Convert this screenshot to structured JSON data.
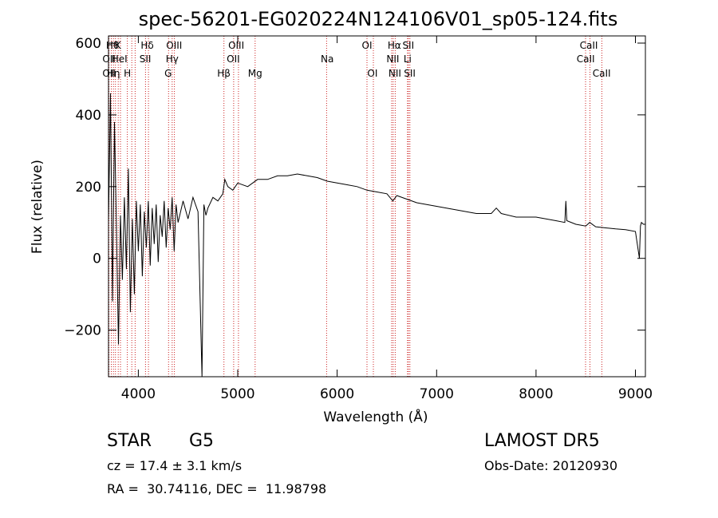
{
  "chart_data": {
    "type": "line",
    "title": "spec-56201-EG020224N124106V01_sp05-124.fits",
    "xlabel": "Wavelength (Å)",
    "ylabel": "Flux (relative)",
    "xlim": [
      3700,
      9100
    ],
    "ylim": [
      -330,
      620
    ],
    "x_ticks": [
      4000,
      5000,
      6000,
      7000,
      8000,
      9000
    ],
    "y_ticks": [
      -200,
      0,
      200,
      400,
      600
    ],
    "grid": false,
    "series": [
      {
        "x": [
          3700,
          3720,
          3740,
          3760,
          3780,
          3800,
          3820,
          3840,
          3860,
          3880,
          3900,
          3920,
          3940,
          3960,
          3980,
          4000,
          4020,
          4040,
          4060,
          4080,
          4100,
          4120,
          4140,
          4160,
          4180,
          4200,
          4220,
          4240,
          4260,
          4280,
          4300,
          4320,
          4340,
          4360,
          4380,
          4400,
          4450,
          4500,
          4550,
          4600,
          4640,
          4660,
          4680,
          4700,
          4750,
          4800,
          4850,
          4870,
          4900,
          4950,
          5000,
          5100,
          5200,
          5300,
          5400,
          5500,
          5600,
          5700,
          5800,
          5900,
          6000,
          6100,
          6200,
          6300,
          6400,
          6500,
          6560,
          6600,
          6700,
          6800,
          7000,
          7200,
          7400,
          7550,
          7600,
          7650,
          7800,
          8000,
          8200,
          8290,
          8300,
          8310,
          8400,
          8500,
          8540,
          8600,
          8700,
          8800,
          8900,
          9000,
          9040,
          9050,
          9060,
          9080,
          9100
        ],
        "values": [
          100,
          460,
          -120,
          380,
          80,
          -240,
          120,
          -60,
          170,
          -30,
          250,
          -150,
          110,
          -100,
          160,
          20,
          150,
          -50,
          130,
          30,
          160,
          -20,
          140,
          40,
          150,
          -10,
          120,
          60,
          160,
          30,
          140,
          80,
          170,
          20,
          150,
          100,
          160,
          110,
          170,
          130,
          -330,
          150,
          120,
          140,
          170,
          160,
          180,
          220,
          200,
          190,
          210,
          200,
          220,
          220,
          230,
          230,
          235,
          230,
          225,
          215,
          210,
          205,
          200,
          190,
          185,
          180,
          160,
          175,
          165,
          155,
          145,
          135,
          125,
          125,
          140,
          125,
          115,
          115,
          105,
          100,
          160,
          105,
          95,
          90,
          100,
          88,
          85,
          82,
          80,
          75,
          0,
          90,
          100,
          95,
          95
        ]
      }
    ],
    "lines": [
      {
        "x": 3705,
        "name": "OII"
      },
      {
        "x": 3728,
        "name": "OII"
      },
      {
        "x": 3750,
        "name": "Hθ"
      },
      {
        "x": 3770,
        "name": "Hη"
      },
      {
        "x": 3798,
        "name": "Hζ"
      },
      {
        "x": 3820,
        "name": "HeI"
      },
      {
        "x": 3889,
        "name": "HeI"
      },
      {
        "x": 3934,
        "name": "K"
      },
      {
        "x": 3968,
        "name": "H"
      },
      {
        "x": 4072,
        "name": "SII"
      },
      {
        "x": 4102,
        "name": "Hδ"
      },
      {
        "x": 4304,
        "name": "G"
      },
      {
        "x": 4340,
        "name": "Hγ"
      },
      {
        "x": 4363,
        "name": "OIII"
      },
      {
        "x": 4861,
        "name": "Hβ"
      },
      {
        "x": 4959,
        "name": "OIII"
      },
      {
        "x": 5007,
        "name": "OIII"
      },
      {
        "x": 5175,
        "name": "Mg"
      },
      {
        "x": 5894,
        "name": "Na"
      },
      {
        "x": 6300,
        "name": "OI"
      },
      {
        "x": 6364,
        "name": "OI"
      },
      {
        "x": 6548,
        "name": "NII"
      },
      {
        "x": 6563,
        "name": "Hα"
      },
      {
        "x": 6584,
        "name": "NII"
      },
      {
        "x": 6707,
        "name": "Li"
      },
      {
        "x": 6717,
        "name": "SII"
      },
      {
        "x": 6731,
        "name": "SII"
      },
      {
        "x": 8498,
        "name": "CaII"
      },
      {
        "x": 8542,
        "name": "CaII"
      },
      {
        "x": 8662,
        "name": "CaII"
      }
    ],
    "line_labels": [
      {
        "x": 3740,
        "row": 0,
        "text": "Hθ"
      },
      {
        "x": 3795,
        "row": 0,
        "text": "K"
      },
      {
        "x": 4090,
        "row": 0,
        "text": "Hδ"
      },
      {
        "x": 4360,
        "row": 0,
        "text": "OIII"
      },
      {
        "x": 4985,
        "row": 0,
        "text": "OIII"
      },
      {
        "x": 6300,
        "row": 0,
        "text": "OI"
      },
      {
        "x": 6575,
        "row": 0,
        "text": "Hα"
      },
      {
        "x": 6715,
        "row": 0,
        "text": "SII"
      },
      {
        "x": 8530,
        "row": 0,
        "text": "CaII"
      },
      {
        "x": 3705,
        "row": 1,
        "text": "OII"
      },
      {
        "x": 3810,
        "row": 1,
        "text": "HeI"
      },
      {
        "x": 4070,
        "row": 1,
        "text": "SII"
      },
      {
        "x": 4340,
        "row": 1,
        "text": "Hγ"
      },
      {
        "x": 4955,
        "row": 1,
        "text": "OII"
      },
      {
        "x": 5900,
        "row": 1,
        "text": "Na"
      },
      {
        "x": 6560,
        "row": 1,
        "text": "NII"
      },
      {
        "x": 6708,
        "row": 1,
        "text": "Li"
      },
      {
        "x": 8500,
        "row": 1,
        "text": "CaII"
      },
      {
        "x": 3705,
        "row": 2,
        "text": "OII"
      },
      {
        "x": 3750,
        "row": 2,
        "text": "Hη"
      },
      {
        "x": 3890,
        "row": 2,
        "text": "H"
      },
      {
        "x": 4300,
        "row": 2,
        "text": "G"
      },
      {
        "x": 4860,
        "row": 2,
        "text": "Hβ"
      },
      {
        "x": 5175,
        "row": 2,
        "text": "Mg"
      },
      {
        "x": 6355,
        "row": 2,
        "text": "OI"
      },
      {
        "x": 6580,
        "row": 2,
        "text": "NII"
      },
      {
        "x": 6730,
        "row": 2,
        "text": "SII"
      },
      {
        "x": 8660,
        "row": 2,
        "text": "CaII"
      }
    ],
    "colors": {
      "spectrum": "#000000",
      "lines": "#cc2222",
      "axes": "#000000"
    }
  },
  "info": {
    "class_label": "STAR",
    "subclass": "G5",
    "survey": "LAMOST DR5",
    "cz": "cz = 17.4 ± 3.1 km/s",
    "obs_date": "Obs-Date: 20120930",
    "coords": "RA =  30.74116, DEC =  11.98798"
  }
}
